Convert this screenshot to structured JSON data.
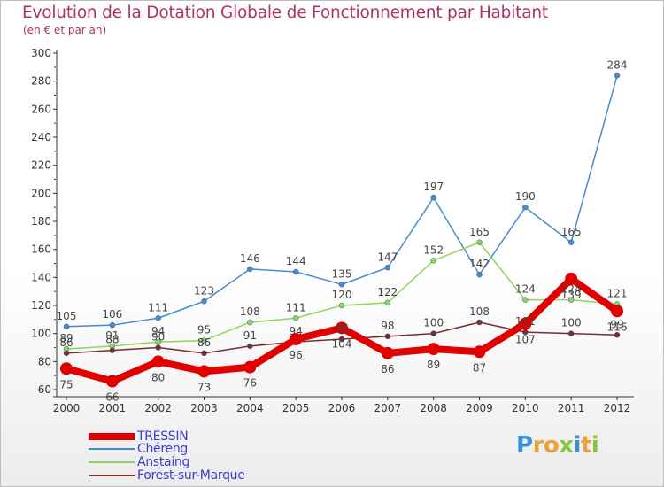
{
  "title": "Evolution de la Dotation Globale de Fonctionnement par Habitant",
  "subtitle": "(en € et par an)",
  "logo": {
    "text": "Proxiti",
    "letter_colors": [
      "#3b8fd6",
      "#e8a13c",
      "#e8a13c",
      "#8cc63f",
      "#3b8fd6",
      "#e8a13c",
      "#8cc63f"
    ]
  },
  "chart_data": {
    "type": "line",
    "title": "Evolution de la Dotation Globale de Fonctionnement par Habitant",
    "subtitle": "(en € et par an)",
    "x": [
      "2000",
      "2001",
      "2002",
      "2003",
      "2004",
      "2005",
      "2006",
      "2007",
      "2008",
      "2009",
      "2010",
      "2011",
      "2012"
    ],
    "ylim": [
      60,
      300
    ],
    "yticks": [
      60,
      80,
      100,
      120,
      140,
      160,
      180,
      200,
      220,
      240,
      260,
      280,
      300
    ],
    "grid": false,
    "legend_position": "bottom-left",
    "series": [
      {
        "name": "Chéreng",
        "color": "#4a8bc9",
        "width": 1.5,
        "values": [
          105,
          106,
          111,
          123,
          146,
          144,
          135,
          147,
          197,
          142,
          190,
          165,
          284
        ],
        "labels": [
          "105",
          "106",
          "111",
          "123",
          "146",
          "144",
          "135",
          "147",
          "197",
          "142",
          "190",
          "165",
          "284"
        ]
      },
      {
        "name": "Anstaing",
        "color": "#8fd45c",
        "width": 1.5,
        "values": [
          89,
          91,
          94,
          95,
          108,
          111,
          120,
          122,
          152,
          165,
          124,
          124,
          121
        ],
        "labels": [
          "89",
          "91",
          "94",
          "95",
          "108",
          "111",
          "120",
          "122",
          "152",
          "165",
          "124",
          "124",
          "121"
        ]
      },
      {
        "name": "Forest-sur-Marque",
        "color": "#7b2d2d",
        "width": 1.5,
        "values": [
          86,
          88,
          90,
          86,
          91,
          94,
          96,
          98,
          100,
          108,
          101,
          100,
          99
        ],
        "labels": [
          "86",
          "88",
          "90",
          "86",
          "91",
          "94",
          "96",
          "98",
          "100",
          "108",
          "101",
          "100",
          "99"
        ]
      },
      {
        "name": "TRESSIN",
        "color": "#e00000",
        "width": 8,
        "values": [
          75,
          66,
          80,
          73,
          76,
          96,
          104,
          86,
          89,
          87,
          107,
          139,
          116
        ],
        "labels": [
          "75",
          "66",
          "80",
          "73",
          "76",
          "96",
          "104",
          "86",
          "89",
          "87",
          "107",
          "139",
          "116"
        ]
      }
    ],
    "legend": [
      "TRESSIN",
      "Chéreng",
      "Anstaing",
      "Forest-sur-Marque"
    ]
  }
}
